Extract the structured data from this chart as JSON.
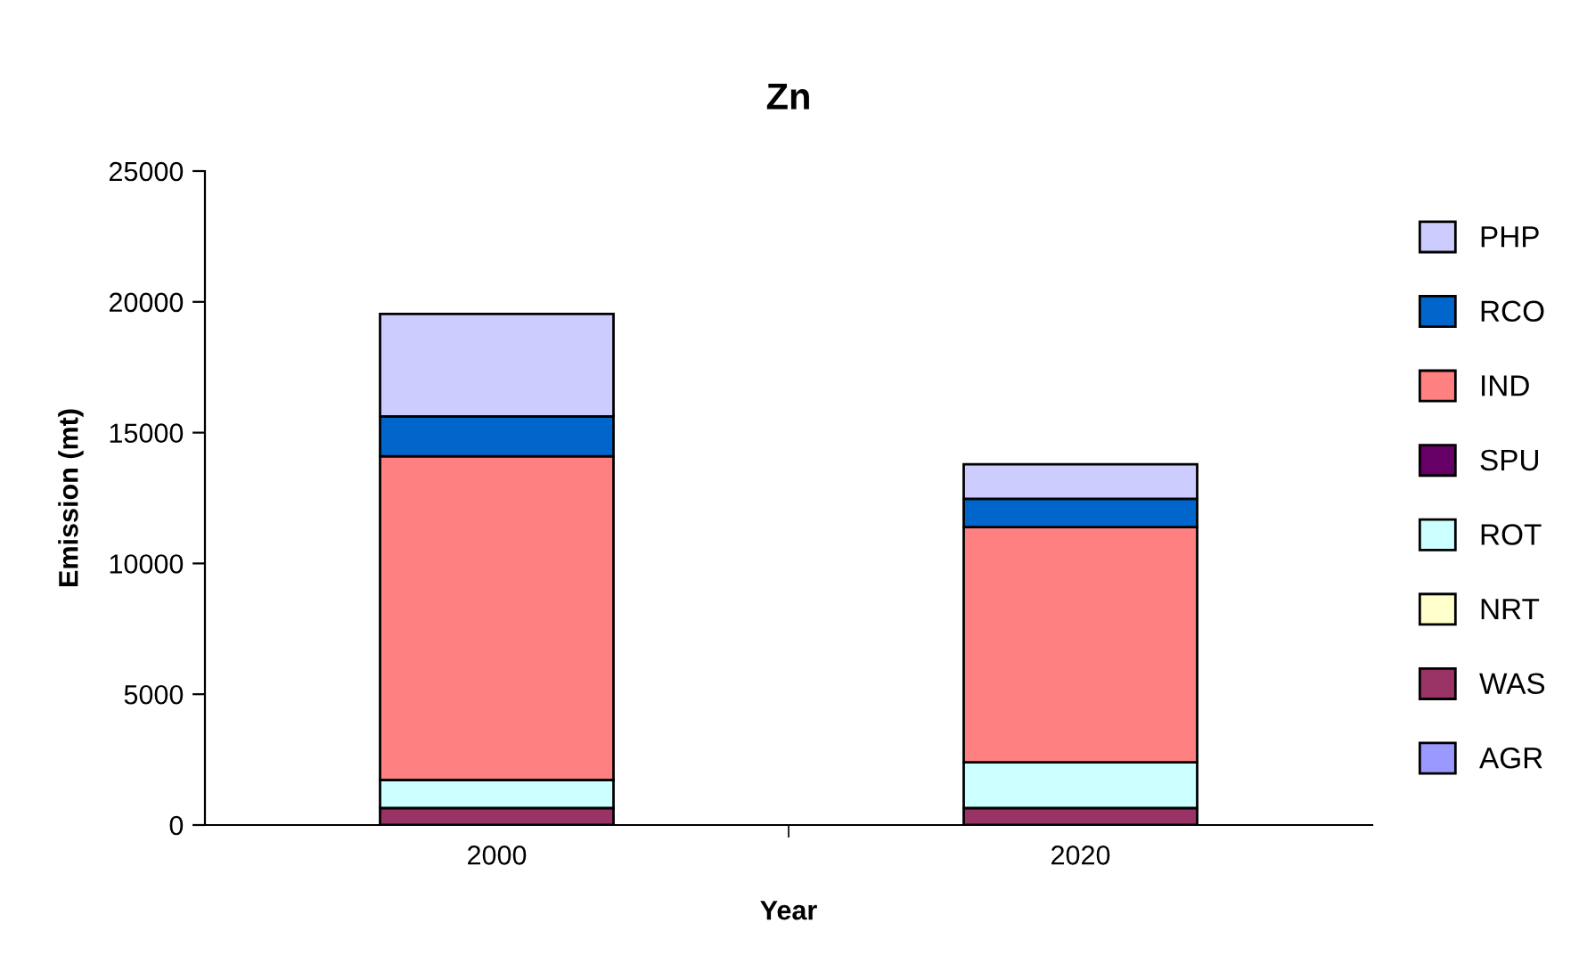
{
  "chart_data": {
    "type": "bar",
    "title": "Zn",
    "xlabel": "Year",
    "ylabel": "Emission (mt)",
    "categories": [
      "2000",
      "2020"
    ],
    "stacked": true,
    "series": [
      {
        "name": "AGR",
        "color": "#9999ff",
        "values": [
          0,
          0
        ]
      },
      {
        "name": "WAS",
        "color": "#993366",
        "values": [
          650,
          650
        ]
      },
      {
        "name": "NRT",
        "color": "#ffffcc",
        "values": [
          0,
          0
        ]
      },
      {
        "name": "ROT",
        "color": "#ccffff",
        "values": [
          1070,
          1750
        ]
      },
      {
        "name": "SPU",
        "color": "#660066",
        "values": [
          0,
          0
        ]
      },
      {
        "name": "IND",
        "color": "#ff8080",
        "values": [
          12380,
          8990
        ]
      },
      {
        "name": "RCO",
        "color": "#0066cc",
        "values": [
          1520,
          1080
        ]
      },
      {
        "name": "PHP",
        "color": "#ccccff",
        "values": [
          3920,
          1320
        ]
      }
    ],
    "ylim": [
      0,
      25000
    ],
    "yticks": [
      0,
      5000,
      10000,
      15000,
      20000,
      25000
    ],
    "grid": false,
    "legend": "right"
  }
}
